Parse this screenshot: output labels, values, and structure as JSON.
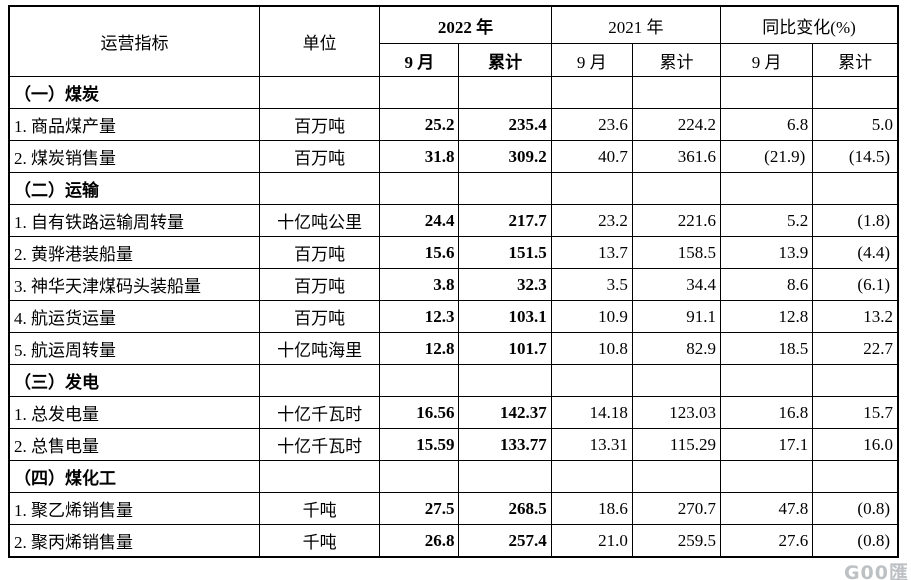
{
  "table": {
    "header": {
      "col_indicator": "运营指标",
      "col_unit": "单位",
      "group_2022": "2022 年",
      "group_2021": "2021 年",
      "group_yoy": "同比变化(%)",
      "subs": [
        "9 月",
        "累计",
        "9 月",
        "累计",
        "9 月",
        "累计"
      ]
    },
    "rows": [
      {
        "type": "section",
        "label": "（一）煤炭"
      },
      {
        "type": "data",
        "label": "1. 商品煤产量",
        "unit": "百万吨",
        "values": [
          "25.2",
          "235.4",
          "23.6",
          "224.2",
          "6.8",
          "5.0"
        ]
      },
      {
        "type": "data",
        "label": "2. 煤炭销售量",
        "unit": "百万吨",
        "values": [
          "31.8",
          "309.2",
          "40.7",
          "361.6",
          "(21.9)",
          "(14.5)"
        ]
      },
      {
        "type": "section",
        "label": "（二）运输"
      },
      {
        "type": "data",
        "label": "1. 自有铁路运输周转量",
        "unit": "十亿吨公里",
        "values": [
          "24.4",
          "217.7",
          "23.2",
          "221.6",
          "5.2",
          "(1.8)"
        ]
      },
      {
        "type": "data",
        "label": "2. 黄骅港装船量",
        "unit": "百万吨",
        "values": [
          "15.6",
          "151.5",
          "13.7",
          "158.5",
          "13.9",
          "(4.4)"
        ]
      },
      {
        "type": "data",
        "label": "3. 神华天津煤码头装船量",
        "unit": "百万吨",
        "values": [
          "3.8",
          "32.3",
          "3.5",
          "34.4",
          "8.6",
          "(6.1)"
        ]
      },
      {
        "type": "data",
        "label": "4. 航运货运量",
        "unit": "百万吨",
        "values": [
          "12.3",
          "103.1",
          "10.9",
          "91.1",
          "12.8",
          "13.2"
        ]
      },
      {
        "type": "data",
        "label": "5. 航运周转量",
        "unit": "十亿吨海里",
        "values": [
          "12.8",
          "101.7",
          "10.8",
          "82.9",
          "18.5",
          "22.7"
        ]
      },
      {
        "type": "section",
        "label": "（三）发电"
      },
      {
        "type": "data",
        "label": "1. 总发电量",
        "unit": "十亿千瓦时",
        "values": [
          "16.56",
          "142.37",
          "14.18",
          "123.03",
          "16.8",
          "15.7"
        ]
      },
      {
        "type": "data",
        "label": "2. 总售电量",
        "unit": "十亿千瓦时",
        "values": [
          "15.59",
          "133.77",
          "13.31",
          "115.29",
          "17.1",
          "16.0"
        ]
      },
      {
        "type": "section",
        "label": "（四）煤化工"
      },
      {
        "type": "data",
        "label": "1. 聚乙烯销售量",
        "unit": "千吨",
        "values": [
          "27.5",
          "268.5",
          "18.6",
          "270.7",
          "47.8",
          "(0.8)"
        ]
      },
      {
        "type": "data",
        "label": "2. 聚丙烯销售量",
        "unit": "千吨",
        "values": [
          "26.8",
          "257.4",
          "21.0",
          "259.5",
          "27.6",
          "(0.8)"
        ]
      }
    ]
  },
  "watermark": "G00匯"
}
